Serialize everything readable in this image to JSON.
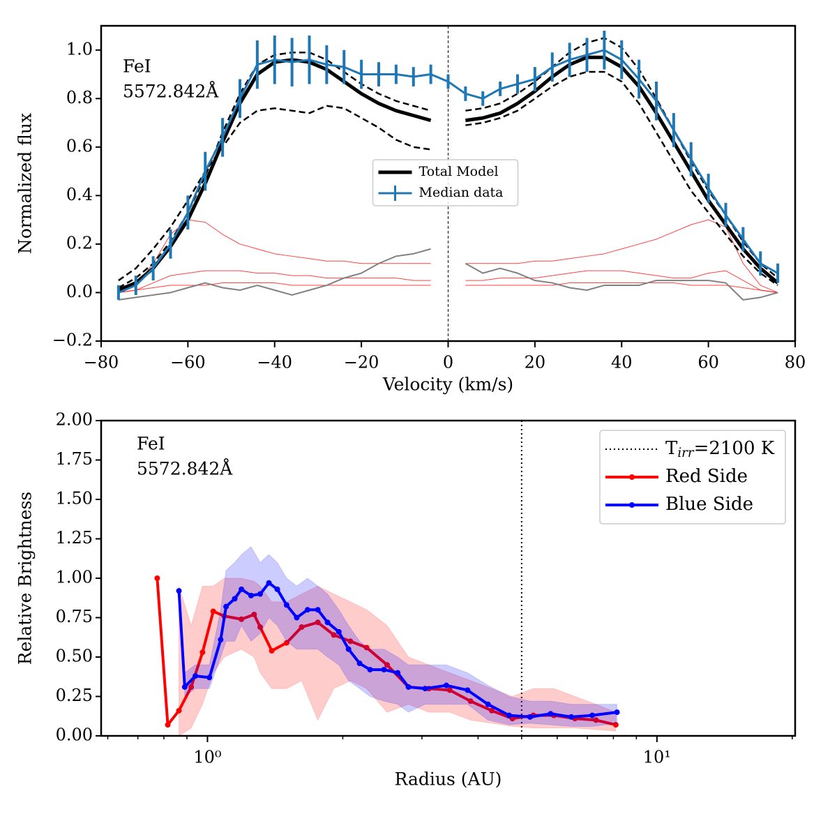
{
  "chart_data": [
    {
      "type": "line",
      "xlabel": "Velocity (km/s)",
      "ylabel": "Normalized flux",
      "annotation": [
        "FeI",
        "5572.842Å"
      ],
      "xlim": [
        -80,
        80
      ],
      "xticks": [
        {
          "value": -80,
          "label": "−80"
        },
        {
          "value": -60,
          "label": "−60"
        },
        {
          "value": -40,
          "label": "−40"
        },
        {
          "value": -20,
          "label": "−20"
        },
        0,
        20,
        40,
        60,
        80
      ],
      "ylim": [
        -0.2,
        1.1
      ],
      "yticks": [
        {
          "value": -0.2,
          "label": "−0.2"
        },
        {
          "value": 0,
          "label": "0.0"
        },
        {
          "value": 0.2,
          "label": "0.2"
        },
        {
          "value": 0.4,
          "label": "0.4"
        },
        {
          "value": 0.6,
          "label": "0.6"
        },
        {
          "value": 0.8,
          "label": "0.8"
        },
        {
          "value": 1.0,
          "label": "1.0"
        }
      ],
      "vline": 0,
      "legend": "center",
      "x": [
        -76,
        -72,
        -68,
        -64,
        -60,
        -56,
        -52,
        -48,
        -44,
        -40,
        -36,
        -32,
        -28,
        -24,
        -20,
        -16,
        -12,
        -8,
        -4,
        0,
        4,
        8,
        12,
        16,
        20,
        24,
        28,
        32,
        36,
        40,
        44,
        48,
        52,
        56,
        60,
        64,
        68,
        72,
        76
      ],
      "series": [
        {
          "color": "#ff0000",
          "style": "solid",
          "width": 1,
          "values": [
            0.0,
            0.03,
            0.12,
            0.24,
            0.3,
            0.29,
            0.24,
            0.2,
            0.18,
            0.16,
            0.15,
            0.14,
            0.13,
            0.13,
            0.12,
            0.12,
            0.12,
            0.12,
            0.12,
            null,
            0.12,
            0.12,
            0.12,
            0.12,
            0.13,
            0.13,
            0.14,
            0.15,
            0.16,
            0.18,
            0.2,
            0.22,
            0.25,
            0.28,
            0.3,
            0.27,
            0.12,
            0.03,
            0.0
          ]
        },
        {
          "color": "#ff0000",
          "style": "solid",
          "width": 1,
          "values": [
            0.0,
            0.01,
            0.04,
            0.07,
            0.08,
            0.09,
            0.09,
            0.09,
            0.08,
            0.08,
            0.07,
            0.07,
            0.06,
            0.06,
            0.06,
            0.06,
            0.06,
            0.05,
            0.05,
            null,
            0.05,
            0.05,
            0.06,
            0.06,
            0.06,
            0.07,
            0.08,
            0.09,
            0.09,
            0.09,
            0.08,
            0.07,
            0.06,
            0.06,
            0.08,
            0.09,
            0.05,
            0.01,
            0.0
          ]
        },
        {
          "color": "#ff0000",
          "style": "solid",
          "width": 1,
          "values": [
            0.0,
            0.01,
            0.02,
            0.03,
            0.03,
            0.03,
            0.04,
            0.04,
            0.04,
            0.04,
            0.03,
            0.03,
            0.03,
            0.03,
            0.03,
            0.03,
            0.03,
            0.03,
            0.03,
            null,
            0.03,
            0.03,
            0.03,
            0.03,
            0.03,
            0.03,
            0.04,
            0.04,
            0.04,
            0.04,
            0.04,
            0.04,
            0.04,
            0.03,
            0.03,
            0.03,
            0.02,
            0.01,
            0.0
          ]
        },
        {
          "color": "#808080",
          "style": "solid",
          "width": 2,
          "values": [
            -0.03,
            -0.02,
            -0.01,
            0.0,
            0.02,
            0.04,
            0.02,
            0.01,
            0.03,
            0.01,
            -0.01,
            0.01,
            0.03,
            0.06,
            0.08,
            0.12,
            0.15,
            0.16,
            0.18,
            null,
            0.12,
            0.08,
            0.1,
            0.08,
            0.05,
            0.04,
            0.02,
            0.01,
            0.03,
            0.03,
            0.03,
            0.05,
            0.05,
            0.05,
            0.05,
            0.04,
            -0.03,
            -0.02,
            0.0
          ]
        },
        {
          "color": "#000000",
          "style": "dashed",
          "width": 2.5,
          "values": [
            0.02,
            0.06,
            0.12,
            0.21,
            0.33,
            0.48,
            0.66,
            0.82,
            0.94,
            0.98,
            0.99,
            0.99,
            0.96,
            0.91,
            0.86,
            0.82,
            0.79,
            0.77,
            0.75,
            null,
            0.75,
            0.76,
            0.78,
            0.82,
            0.87,
            0.93,
            0.99,
            1.03,
            1.05,
            1.01,
            0.92,
            0.8,
            0.67,
            0.54,
            0.42,
            0.32,
            0.21,
            0.12,
            0.06
          ]
        },
        {
          "color": "#000000",
          "style": "dashed",
          "width": 2.5,
          "values": [
            0.05,
            0.1,
            0.18,
            0.27,
            0.38,
            0.5,
            0.6,
            0.7,
            0.75,
            0.76,
            0.75,
            0.74,
            0.77,
            0.76,
            0.72,
            0.68,
            0.63,
            0.6,
            0.59,
            null,
            0.69,
            0.7,
            0.72,
            0.75,
            0.8,
            0.85,
            0.89,
            0.91,
            0.91,
            0.87,
            0.78,
            0.66,
            0.54,
            0.42,
            0.33,
            0.24,
            0.15,
            0.08,
            0.03
          ]
        },
        {
          "name": "Total Model",
          "color": "#000000",
          "style": "solid",
          "width": 5,
          "values": [
            0.01,
            0.04,
            0.1,
            0.19,
            0.3,
            0.45,
            0.62,
            0.78,
            0.9,
            0.95,
            0.96,
            0.95,
            0.92,
            0.87,
            0.82,
            0.78,
            0.75,
            0.73,
            0.71,
            null,
            0.71,
            0.72,
            0.74,
            0.78,
            0.83,
            0.89,
            0.94,
            0.97,
            0.97,
            0.93,
            0.85,
            0.74,
            0.62,
            0.5,
            0.38,
            0.28,
            0.18,
            0.1,
            0.04
          ]
        },
        {
          "name": "Median data",
          "color": "#1f77b4",
          "style": "solid",
          "width": 3,
          "values": [
            0.0,
            0.03,
            0.1,
            0.2,
            0.33,
            0.5,
            0.64,
            0.8,
            0.94,
            0.96,
            0.95,
            0.96,
            0.94,
            0.93,
            0.9,
            0.9,
            0.9,
            0.89,
            0.9,
            0.87,
            0.82,
            0.8,
            0.84,
            0.86,
            0.88,
            0.93,
            0.96,
            0.98,
            1.0,
            0.96,
            0.88,
            0.79,
            0.67,
            0.55,
            0.43,
            0.32,
            0.22,
            0.12,
            0.08
          ],
          "errors": [
            0.03,
            0.04,
            0.05,
            0.06,
            0.07,
            0.08,
            0.08,
            0.08,
            0.1,
            0.1,
            0.1,
            0.1,
            0.08,
            0.07,
            0.06,
            0.05,
            0.04,
            0.04,
            0.04,
            0.03,
            0.03,
            0.03,
            0.03,
            0.04,
            0.05,
            0.06,
            0.07,
            0.07,
            0.08,
            0.08,
            0.08,
            0.08,
            0.07,
            0.07,
            0.06,
            0.05,
            0.05,
            0.05,
            0.04
          ]
        }
      ]
    },
    {
      "type": "line",
      "xscale": "log",
      "xlabel": "Radius (AU)",
      "ylabel": "Relative Brightness",
      "annotation": [
        "FeI",
        "5572.842Å"
      ],
      "xlim": [
        0.58,
        20.3
      ],
      "xticks": [
        {
          "value": 1,
          "label": "10⁰"
        },
        {
          "value": 10,
          "label": "10¹"
        }
      ],
      "xminorticks": [
        0.6,
        0.7,
        0.8,
        0.9,
        2,
        3,
        4,
        5,
        6,
        7,
        8,
        9,
        20
      ],
      "ylim": [
        0,
        2
      ],
      "yticks": [
        {
          "value": 0,
          "label": "0.00"
        },
        {
          "value": 0.25,
          "label": "0.25"
        },
        {
          "value": 0.5,
          "label": "0.50"
        },
        {
          "value": 0.75,
          "label": "0.75"
        },
        {
          "value": 1.0,
          "label": "1.00"
        },
        {
          "value": 1.25,
          "label": "1.25"
        },
        {
          "value": 1.5,
          "label": "1.50"
        },
        {
          "value": 1.75,
          "label": "1.75"
        },
        {
          "value": 2.0,
          "label": "2.00"
        }
      ],
      "legend": "upper right",
      "reference_line": {
        "x": 5,
        "label_parts": [
          "T",
          "irr",
          "=2100 K"
        ]
      },
      "series": [
        {
          "name": "Red Side",
          "color": "#ff0000",
          "band_color": "#ff0000",
          "x": [
            0.773,
            0.816,
            0.864,
            0.92,
            0.975,
            1.03,
            1.09,
            1.19,
            1.27,
            1.31,
            1.39,
            1.5,
            1.62,
            1.76,
            1.91,
            2.08,
            2.26,
            2.51,
            2.8,
            3.11,
            3.46,
            3.85,
            4.29,
            4.77,
            5.31,
            5.9,
            6.57,
            7.32,
            8.1
          ],
          "values": [
            1.0,
            0.07,
            0.16,
            0.31,
            0.53,
            0.79,
            0.76,
            0.74,
            0.77,
            0.69,
            0.54,
            0.59,
            0.69,
            0.72,
            0.64,
            0.6,
            0.56,
            0.45,
            0.31,
            0.3,
            0.29,
            0.22,
            0.16,
            0.11,
            0.13,
            0.13,
            0.11,
            0.1,
            0.07
          ],
          "lower": [
            null,
            null,
            0.0,
            0.05,
            0.2,
            0.4,
            0.5,
            0.55,
            0.5,
            0.4,
            0.3,
            0.3,
            0.35,
            0.1,
            0.3,
            0.35,
            0.3,
            0.15,
            0.2,
            0.15,
            0.15,
            0.1,
            0.08,
            0.06,
            0.05,
            0.05,
            0.05,
            0.04,
            0.03
          ],
          "upper": [
            null,
            null,
            0.95,
            0.7,
            0.95,
            0.95,
            1.0,
            1.0,
            0.98,
            0.95,
            0.85,
            0.85,
            0.9,
            0.95,
            0.9,
            0.85,
            0.8,
            0.7,
            0.5,
            0.45,
            0.4,
            0.35,
            0.3,
            0.25,
            0.3,
            0.3,
            0.25,
            0.2,
            0.15
          ]
        },
        {
          "name": "Blue Side",
          "color": "#0000ff",
          "band_color": "#0000ff",
          "x": [
            0.864,
            0.89,
            0.94,
            1.01,
            1.07,
            1.1,
            1.15,
            1.19,
            1.25,
            1.31,
            1.37,
            1.43,
            1.5,
            1.58,
            1.67,
            1.76,
            1.85,
            1.96,
            2.06,
            2.18,
            2.3,
            2.47,
            2.65,
            2.8,
            3.05,
            3.4,
            3.79,
            4.21,
            4.69,
            5.22,
            5.8,
            6.45,
            7.18,
            8.15
          ],
          "values": [
            0.92,
            0.31,
            0.38,
            0.37,
            0.61,
            0.82,
            0.87,
            0.93,
            0.89,
            0.9,
            0.97,
            0.93,
            0.83,
            0.75,
            0.8,
            0.8,
            0.72,
            0.66,
            0.55,
            0.46,
            0.42,
            0.42,
            0.4,
            0.31,
            0.3,
            0.32,
            0.29,
            0.2,
            0.13,
            0.12,
            0.14,
            0.12,
            0.13,
            0.15
          ],
          "lower": [
            null,
            0.25,
            0.3,
            0.3,
            0.5,
            0.6,
            0.6,
            0.7,
            0.6,
            0.65,
            0.75,
            0.7,
            0.6,
            0.55,
            0.55,
            0.55,
            0.5,
            0.45,
            0.35,
            0.3,
            0.25,
            0.22,
            0.2,
            0.15,
            0.2,
            0.2,
            0.2,
            0.1,
            0.07,
            0.08,
            0.07,
            0.06,
            0.06,
            0.08
          ],
          "upper": [
            null,
            0.4,
            0.45,
            0.45,
            0.8,
            1.05,
            1.1,
            1.15,
            1.2,
            1.1,
            1.15,
            1.1,
            1.0,
            0.95,
            1.0,
            0.95,
            0.9,
            0.8,
            0.7,
            0.6,
            0.55,
            0.55,
            0.5,
            0.45,
            0.45,
            0.45,
            0.4,
            0.32,
            0.25,
            0.22,
            0.22,
            0.2,
            0.2,
            0.2
          ]
        }
      ]
    }
  ]
}
